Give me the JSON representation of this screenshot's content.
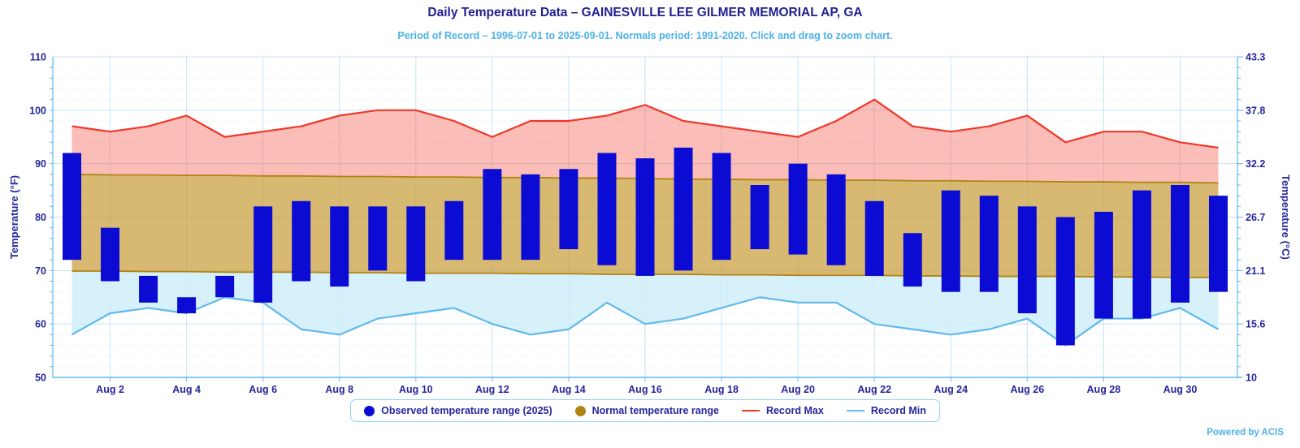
{
  "header": {
    "title": "Daily Temperature Data – GAINESVILLE LEE GILMER MEMORIAL AP, GA",
    "subtitle": "Period of Record – 1996-07-01 to 2025-09-01. Normals period: 1991-2020. Click and drag to zoom chart."
  },
  "powered_by": "Powered by ACIS",
  "colors": {
    "title_text": "#21218f",
    "subtitle_text": "#4db2e8",
    "axis_text": "#26269c",
    "bar_blue": "#0b0bd3",
    "record_max_line": "#ef372a",
    "record_max_fill": "rgba(246,108,96,0.45)",
    "normal_fill": "rgba(200,158,60,0.72)",
    "normal_edge": "#b08414",
    "record_min_line": "#62b8e9",
    "record_min_fill": "rgba(205,237,250,0.8)",
    "gridline": "#c8e2f3",
    "minor_gridline": "#d7e6f3",
    "axis_line": "#5fb9e8",
    "legend_border": "#8ed2f2"
  },
  "chart_data": {
    "type": "columnrange + arearange + line combo",
    "title": "Daily Temperature Data – GAINESVILLE LEE GILMER MEMORIAL AP, GA",
    "days": [
      "Aug 1",
      "Aug 2",
      "Aug 3",
      "Aug 4",
      "Aug 5",
      "Aug 6",
      "Aug 7",
      "Aug 8",
      "Aug 9",
      "Aug 10",
      "Aug 11",
      "Aug 12",
      "Aug 13",
      "Aug 14",
      "Aug 15",
      "Aug 16",
      "Aug 17",
      "Aug 18",
      "Aug 19",
      "Aug 20",
      "Aug 21",
      "Aug 22",
      "Aug 23",
      "Aug 24",
      "Aug 25",
      "Aug 26",
      "Aug 27",
      "Aug 28",
      "Aug 29",
      "Aug 30",
      "Aug 31"
    ],
    "x_tick_step": 2,
    "x_tick_start_index": 1,
    "y_axis_left": {
      "title": "Temperature (°F)",
      "ticks": [
        110,
        100,
        90,
        80,
        70,
        60,
        50
      ],
      "min": 50,
      "max": 110
    },
    "y_axis_right": {
      "title": "Temperature (°C)",
      "tick_labels": [
        "43.3",
        "37.8",
        "32.2",
        "26.7",
        "21.1",
        "15.6",
        "10"
      ]
    },
    "grid": true,
    "legend_position": "bottom-center",
    "series": [
      {
        "name": "Observed temperature range (2025)",
        "type": "columnrange",
        "low": [
          72,
          68,
          64,
          62,
          65,
          64,
          68,
          67,
          70,
          68,
          72,
          72,
          72,
          74,
          71,
          69,
          70,
          72,
          74,
          73,
          71,
          69,
          67,
          66,
          66,
          62,
          56,
          61,
          61,
          64,
          66
        ],
        "high": [
          92,
          78,
          69,
          65,
          69,
          82,
          83,
          82,
          82,
          82,
          83,
          89,
          88,
          89,
          92,
          91,
          93,
          92,
          86,
          90,
          88,
          83,
          77,
          85,
          84,
          82,
          80,
          81,
          85,
          86,
          84
        ]
      },
      {
        "name": "Normal temperature range",
        "type": "arearange",
        "low": [
          69.9,
          69.9,
          69.8,
          69.8,
          69.7,
          69.7,
          69.7,
          69.6,
          69.6,
          69.5,
          69.5,
          69.5,
          69.4,
          69.4,
          69.3,
          69.3,
          69.3,
          69.2,
          69.2,
          69.1,
          69.1,
          69.1,
          69.0,
          69.0,
          68.9,
          68.9,
          68.9,
          68.8,
          68.8,
          68.7,
          68.7
        ],
        "high": [
          88.0,
          87.9,
          87.9,
          87.8,
          87.8,
          87.7,
          87.7,
          87.6,
          87.6,
          87.5,
          87.5,
          87.4,
          87.4,
          87.3,
          87.3,
          87.2,
          87.1,
          87.1,
          87.0,
          87.0,
          86.9,
          86.9,
          86.8,
          86.8,
          86.7,
          86.7,
          86.6,
          86.6,
          86.5,
          86.5,
          86.4
        ]
      },
      {
        "name": "Record Max",
        "type": "line",
        "values": [
          97,
          96,
          97,
          99,
          95,
          96,
          97,
          99,
          100,
          100,
          98,
          95,
          98,
          98,
          99,
          101,
          98,
          97,
          96,
          95,
          98,
          102,
          97,
          96,
          97,
          99,
          94,
          96,
          96,
          94,
          93
        ]
      },
      {
        "name": "Record Min",
        "type": "line",
        "values": [
          58,
          62,
          63,
          62,
          65,
          64,
          59,
          58,
          61,
          62,
          63,
          60,
          58,
          59,
          64,
          60,
          61,
          63,
          65,
          64,
          64,
          60,
          59,
          58,
          59,
          61,
          56,
          61,
          61,
          63,
          59
        ]
      }
    ]
  }
}
